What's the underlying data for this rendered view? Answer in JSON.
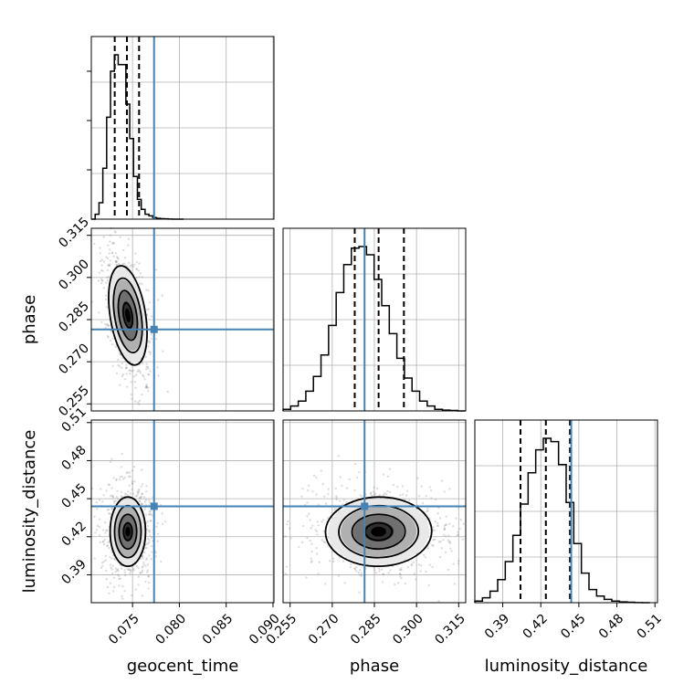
{
  "chart_data": {
    "type": "corner",
    "parameters": [
      "geocent_time",
      "phase",
      "luminosity_distance"
    ],
    "truth_color": "#4682b4",
    "grid": true,
    "truth": {
      "geocent_time": 0.0773,
      "phase": 0.2815,
      "luminosity_distance": 0.444
    },
    "quantiles": {
      "geocent_time": [
        0.0731,
        0.0744,
        0.0757
      ],
      "phase": [
        0.278,
        0.2865,
        0.2955
      ],
      "luminosity_distance": [
        0.404,
        0.424,
        0.443
      ]
    },
    "axes": {
      "geocent_time": {
        "range": [
          0.0706,
          0.0901
        ],
        "ticks": [
          0.075,
          0.08,
          0.085,
          0.09
        ],
        "tick_labels": [
          "0.075",
          "0.080",
          "0.085",
          "0.090"
        ]
      },
      "phase": {
        "range": [
          0.2525,
          0.3175
        ],
        "ticks": [
          0.255,
          0.27,
          0.285,
          0.3,
          0.315
        ],
        "tick_labels": [
          "0.255",
          "0.270",
          "0.285",
          "0.300",
          "0.315"
        ]
      },
      "luminosity_distance": {
        "range": [
          0.368,
          0.512
        ],
        "ticks": [
          0.39,
          0.42,
          0.45,
          0.48,
          0.51
        ],
        "tick_labels": [
          "0.39",
          "0.42",
          "0.45",
          "0.48",
          "0.51"
        ]
      }
    },
    "histograms": {
      "geocent_time": {
        "bin_edges": [
          0.0706,
          0.07101,
          0.07142,
          0.07183,
          0.07224,
          0.07265,
          0.07306,
          0.07347,
          0.07388,
          0.07429,
          0.0747,
          0.07511,
          0.07552,
          0.07593,
          0.07634,
          0.07675,
          0.07716,
          0.07757,
          0.07798,
          0.07839,
          0.0788,
          0.07921,
          0.07962,
          0.08003,
          0.08044
        ],
        "counts": [
          0,
          0.03,
          0.1,
          0.31,
          0.62,
          0.9,
          1.0,
          0.94,
          0.94,
          0.7,
          0.49,
          0.26,
          0.12,
          0.06,
          0.03,
          0.02,
          0.01,
          0.005,
          0.003,
          0.002,
          0.001,
          0,
          0,
          0
        ]
      },
      "phase": {
        "bin_edges": [
          0.2525,
          0.2552,
          0.2579,
          0.2606,
          0.2633,
          0.266,
          0.2687,
          0.2714,
          0.2741,
          0.2768,
          0.2795,
          0.2822,
          0.2849,
          0.2876,
          0.2903,
          0.293,
          0.2957,
          0.2984,
          0.3011,
          0.3038,
          0.3065,
          0.3092,
          0.3119,
          0.3146,
          0.3173
        ],
        "counts": [
          0.01,
          0.03,
          0.06,
          0.12,
          0.21,
          0.34,
          0.52,
          0.72,
          0.89,
          0.99,
          1.0,
          0.95,
          0.8,
          0.64,
          0.47,
          0.32,
          0.2,
          0.12,
          0.06,
          0.03,
          0.01,
          0.005,
          0.003,
          0.0
        ]
      },
      "luminosity_distance": {
        "bin_edges": [
          0.368,
          0.374,
          0.38,
          0.386,
          0.392,
          0.398,
          0.404,
          0.41,
          0.416,
          0.422,
          0.428,
          0.434,
          0.44,
          0.446,
          0.452,
          0.458,
          0.464,
          0.47,
          0.476,
          0.482,
          0.488,
          0.494,
          0.5,
          0.506
        ],
        "counts": [
          0.01,
          0.03,
          0.07,
          0.14,
          0.25,
          0.41,
          0.6,
          0.79,
          0.93,
          1.0,
          0.98,
          0.84,
          0.61,
          0.36,
          0.18,
          0.08,
          0.04,
          0.02,
          0.01,
          0.005,
          0.003,
          0.001,
          0.0
        ]
      }
    },
    "contour_levels": [
      "0.5-sigma",
      "1-sigma",
      "1.5-sigma",
      "2-sigma"
    ],
    "joint_peaks": {
      "phase_vs_geocent_time": {
        "x": 0.0745,
        "y": 0.2865
      },
      "luminosity_distance_vs_geocent_time": {
        "x": 0.0745,
        "y": 0.424
      },
      "luminosity_distance_vs_phase": {
        "x": 0.2865,
        "y": 0.424
      }
    }
  }
}
